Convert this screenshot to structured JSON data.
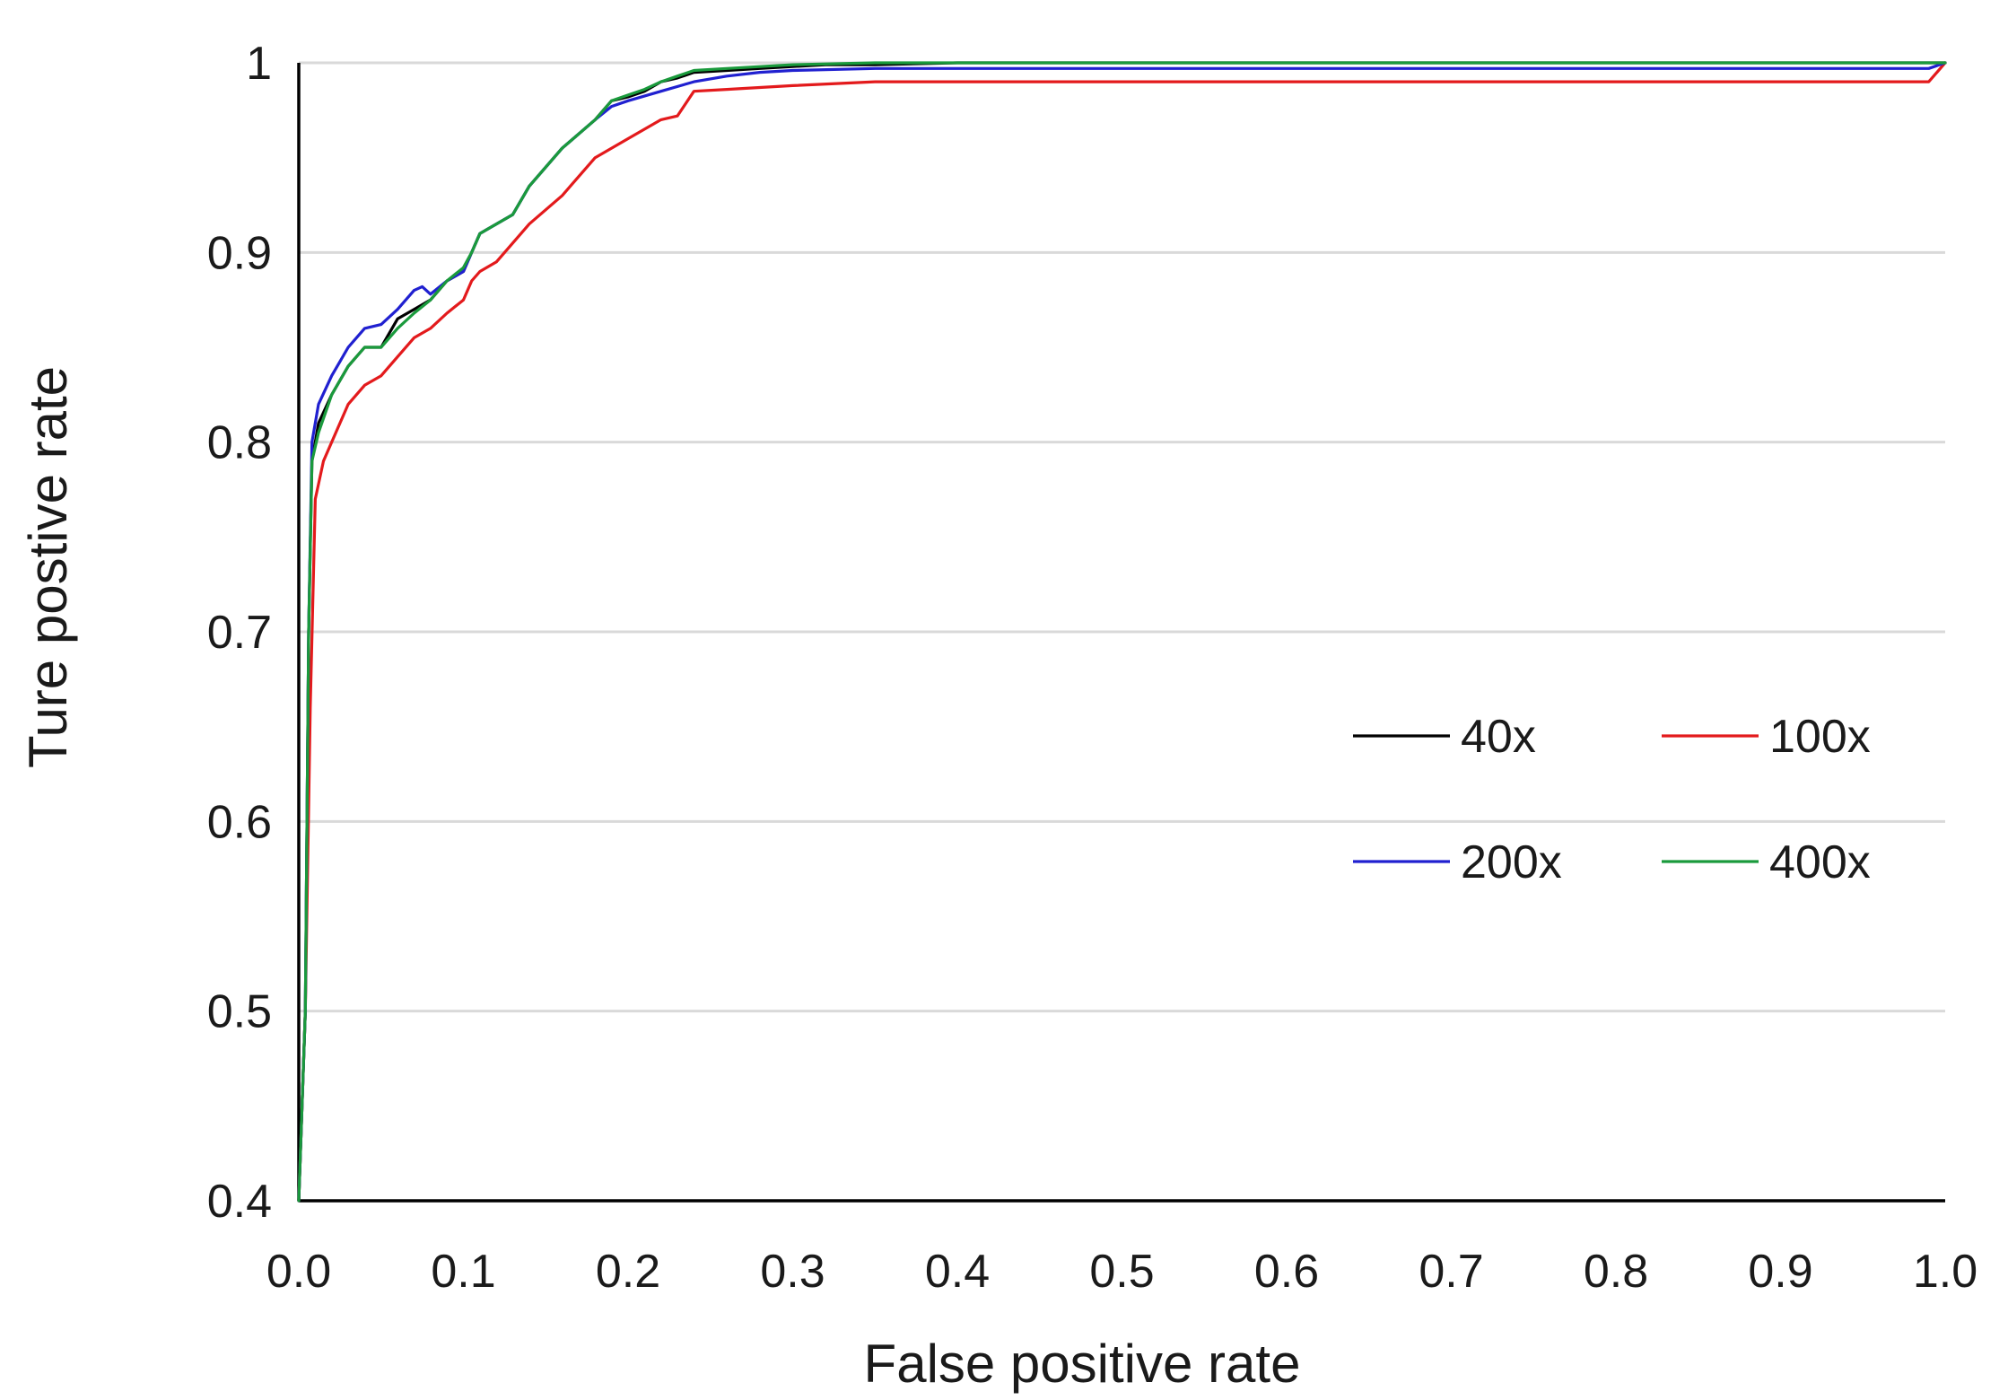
{
  "chart_data": {
    "type": "line",
    "title": "",
    "xlabel": "False positive rate",
    "ylabel": "Ture postive rate",
    "xlim": [
      0.0,
      1.0
    ],
    "ylim": [
      0.4,
      1.0
    ],
    "x_ticks": [
      "0.0",
      "0.1",
      "0.2",
      "0.3",
      "0.4",
      "0.5",
      "0.6",
      "0.7",
      "0.8",
      "0.9",
      "1.0"
    ],
    "y_ticks": [
      "0.4",
      "0.5",
      "0.6",
      "0.7",
      "0.8",
      "0.9",
      "1"
    ],
    "grid": "horizontal",
    "legend_position": "right-center",
    "series": [
      {
        "name": "40x",
        "color": "#000000",
        "points": [
          [
            0.0,
            0.4
          ],
          [
            0.004,
            0.5
          ],
          [
            0.006,
            0.7
          ],
          [
            0.008,
            0.79
          ],
          [
            0.012,
            0.81
          ],
          [
            0.02,
            0.825
          ],
          [
            0.03,
            0.84
          ],
          [
            0.04,
            0.85
          ],
          [
            0.05,
            0.85
          ],
          [
            0.06,
            0.865
          ],
          [
            0.07,
            0.87
          ],
          [
            0.08,
            0.875
          ],
          [
            0.09,
            0.885
          ],
          [
            0.1,
            0.89
          ],
          [
            0.105,
            0.9
          ],
          [
            0.11,
            0.91
          ],
          [
            0.13,
            0.92
          ],
          [
            0.14,
            0.935
          ],
          [
            0.16,
            0.955
          ],
          [
            0.18,
            0.97
          ],
          [
            0.19,
            0.98
          ],
          [
            0.2,
            0.982
          ],
          [
            0.21,
            0.985
          ],
          [
            0.22,
            0.99
          ],
          [
            0.23,
            0.992
          ],
          [
            0.24,
            0.995
          ],
          [
            0.26,
            0.996
          ],
          [
            0.28,
            0.997
          ],
          [
            0.3,
            0.998
          ],
          [
            0.32,
            0.999
          ],
          [
            0.35,
            0.999
          ],
          [
            0.4,
            1.0
          ],
          [
            0.6,
            1.0
          ],
          [
            0.8,
            1.0
          ],
          [
            1.0,
            1.0
          ]
        ]
      },
      {
        "name": "100x",
        "color": "#e31a1c",
        "points": [
          [
            0.0,
            0.4
          ],
          [
            0.004,
            0.5
          ],
          [
            0.007,
            0.66
          ],
          [
            0.01,
            0.77
          ],
          [
            0.015,
            0.79
          ],
          [
            0.03,
            0.82
          ],
          [
            0.04,
            0.83
          ],
          [
            0.05,
            0.835
          ],
          [
            0.06,
            0.845
          ],
          [
            0.07,
            0.855
          ],
          [
            0.08,
            0.86
          ],
          [
            0.09,
            0.868
          ],
          [
            0.1,
            0.875
          ],
          [
            0.105,
            0.885
          ],
          [
            0.11,
            0.89
          ],
          [
            0.12,
            0.895
          ],
          [
            0.13,
            0.905
          ],
          [
            0.14,
            0.915
          ],
          [
            0.16,
            0.93
          ],
          [
            0.18,
            0.95
          ],
          [
            0.2,
            0.96
          ],
          [
            0.22,
            0.97
          ],
          [
            0.23,
            0.972
          ],
          [
            0.24,
            0.985
          ],
          [
            0.26,
            0.986
          ],
          [
            0.28,
            0.987
          ],
          [
            0.3,
            0.988
          ],
          [
            0.35,
            0.99
          ],
          [
            0.5,
            0.99
          ],
          [
            0.7,
            0.99
          ],
          [
            0.9,
            0.99
          ],
          [
            0.99,
            0.99
          ],
          [
            1.0,
            1.0
          ]
        ]
      },
      {
        "name": "200x",
        "color": "#2020d0",
        "points": [
          [
            0.0,
            0.4
          ],
          [
            0.004,
            0.5
          ],
          [
            0.006,
            0.7
          ],
          [
            0.008,
            0.8
          ],
          [
            0.012,
            0.82
          ],
          [
            0.02,
            0.835
          ],
          [
            0.03,
            0.85
          ],
          [
            0.04,
            0.86
          ],
          [
            0.05,
            0.862
          ],
          [
            0.06,
            0.87
          ],
          [
            0.07,
            0.88
          ],
          [
            0.075,
            0.882
          ],
          [
            0.08,
            0.878
          ],
          [
            0.09,
            0.885
          ],
          [
            0.1,
            0.89
          ],
          [
            0.105,
            0.9
          ],
          [
            0.11,
            0.91
          ],
          [
            0.13,
            0.92
          ],
          [
            0.14,
            0.935
          ],
          [
            0.16,
            0.955
          ],
          [
            0.18,
            0.97
          ],
          [
            0.19,
            0.977
          ],
          [
            0.2,
            0.98
          ],
          [
            0.22,
            0.985
          ],
          [
            0.24,
            0.99
          ],
          [
            0.26,
            0.993
          ],
          [
            0.28,
            0.995
          ],
          [
            0.3,
            0.996
          ],
          [
            0.35,
            0.997
          ],
          [
            0.5,
            0.997
          ],
          [
            0.7,
            0.997
          ],
          [
            0.9,
            0.997
          ],
          [
            0.99,
            0.997
          ],
          [
            1.0,
            1.0
          ]
        ]
      },
      {
        "name": "400x",
        "color": "#1a9a3c",
        "points": [
          [
            0.0,
            0.4
          ],
          [
            0.004,
            0.5
          ],
          [
            0.006,
            0.7
          ],
          [
            0.008,
            0.79
          ],
          [
            0.012,
            0.805
          ],
          [
            0.02,
            0.825
          ],
          [
            0.03,
            0.84
          ],
          [
            0.04,
            0.85
          ],
          [
            0.05,
            0.85
          ],
          [
            0.06,
            0.86
          ],
          [
            0.07,
            0.868
          ],
          [
            0.08,
            0.875
          ],
          [
            0.09,
            0.885
          ],
          [
            0.1,
            0.892
          ],
          [
            0.105,
            0.9
          ],
          [
            0.11,
            0.91
          ],
          [
            0.13,
            0.92
          ],
          [
            0.14,
            0.935
          ],
          [
            0.16,
            0.955
          ],
          [
            0.18,
            0.97
          ],
          [
            0.19,
            0.98
          ],
          [
            0.2,
            0.983
          ],
          [
            0.21,
            0.986
          ],
          [
            0.22,
            0.99
          ],
          [
            0.23,
            0.993
          ],
          [
            0.24,
            0.996
          ],
          [
            0.26,
            0.997
          ],
          [
            0.28,
            0.998
          ],
          [
            0.3,
            0.999
          ],
          [
            0.35,
            1.0
          ],
          [
            0.5,
            1.0
          ],
          [
            0.7,
            1.0
          ],
          [
            0.9,
            1.0
          ],
          [
            1.0,
            1.0
          ]
        ]
      }
    ]
  }
}
